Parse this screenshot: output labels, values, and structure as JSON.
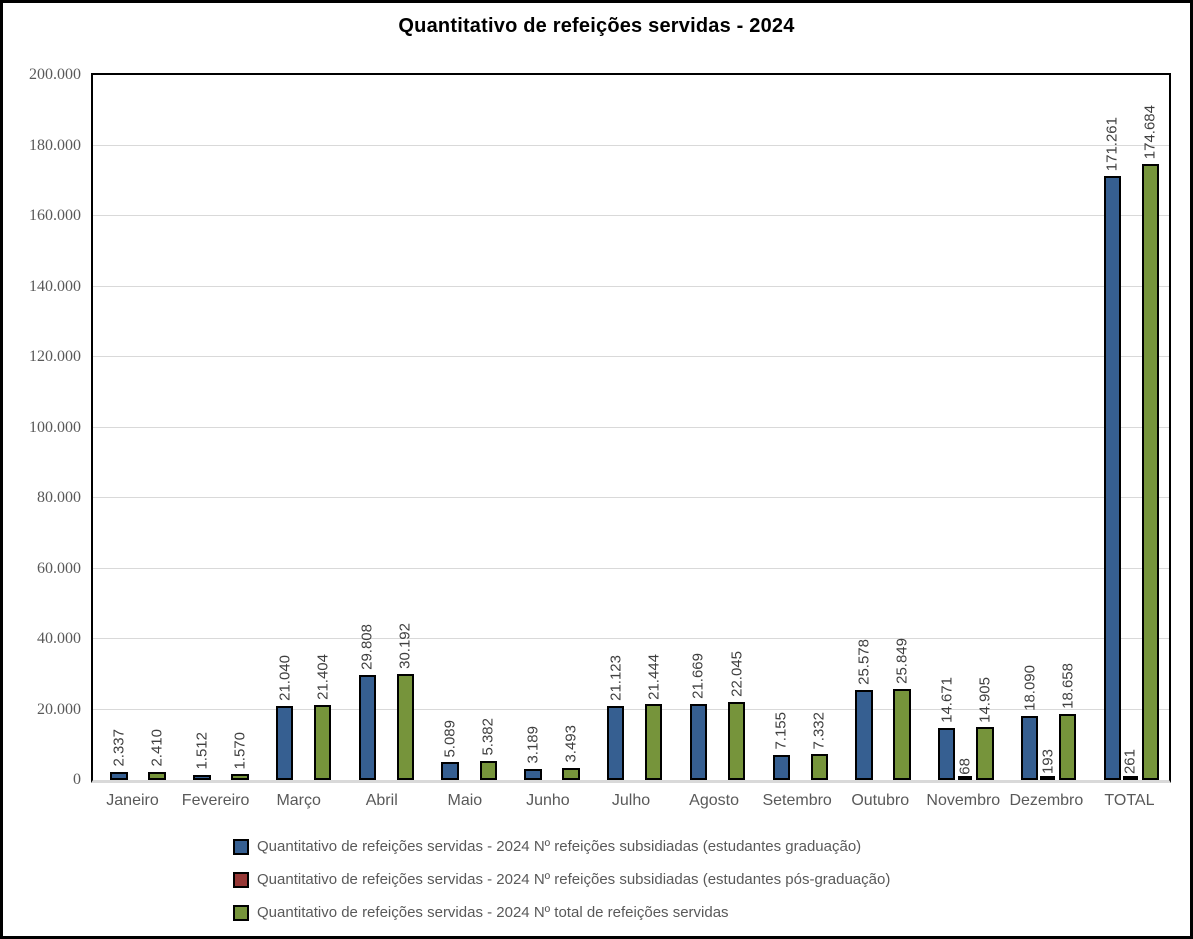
{
  "page": {
    "background": "#FFFFFF",
    "frame_border_color": "#000000"
  },
  "chart_data": {
    "type": "bar",
    "title": "Quantitativo de refeições servidas - 2024",
    "categories": [
      "Janeiro",
      "Fevereiro",
      "Março",
      "Abril",
      "Maio",
      "Junho",
      "Julho",
      "Agosto",
      "Setembro",
      "Outubro",
      "Novembro",
      "Dezembro",
      "TOTAL"
    ],
    "series": [
      {
        "key": "graduacao",
        "name": "Quantitativo de refeições servidas - 2024 Nº refeições subsidiadas (estudantes graduação)",
        "color": "#365F91",
        "values": [
          2337,
          1512,
          21040,
          29808,
          5089,
          3189,
          21123,
          21669,
          7155,
          25578,
          14671,
          18090,
          171261
        ],
        "labels": [
          "2.337",
          "1.512",
          "21.040",
          "29.808",
          "5.089",
          "3.189",
          "21.123",
          "21.669",
          "7.155",
          "25.578",
          "14.671",
          "18.090",
          "171.261"
        ]
      },
      {
        "key": "pos-graduacao",
        "name": "Quantitativo de refeições servidas - 2024 Nº refeições subsidiadas (estudantes pós-graduação)",
        "color": "#953735",
        "values": [
          0,
          0,
          0,
          0,
          0,
          0,
          0,
          0,
          0,
          0,
          68,
          193,
          261
        ],
        "labels": [
          null,
          null,
          null,
          null,
          null,
          null,
          null,
          null,
          null,
          null,
          "68",
          "193",
          "261"
        ]
      },
      {
        "key": "total",
        "name": "Quantitativo de refeições servidas - 2024 Nº total de refeições servidas",
        "color": "#76943B",
        "values": [
          2410,
          1570,
          21404,
          30192,
          5382,
          3493,
          21444,
          22045,
          7332,
          25849,
          14905,
          18658,
          174684
        ],
        "labels": [
          "2.410",
          "1.570",
          "21.404",
          "30.192",
          "5.382",
          "3.493",
          "21.444",
          "22.045",
          "7.332",
          "25.849",
          "14.905",
          "18.658",
          "174.684"
        ]
      }
    ],
    "ylim": [
      0,
      200000
    ],
    "ytick_step": 20000,
    "ytick_labels": [
      "0",
      "20.000",
      "40.000",
      "60.000",
      "80.000",
      "100.000",
      "120.000",
      "140.000",
      "160.000",
      "180.000",
      "200.000"
    ],
    "grid": true,
    "gridline_color": "#D9D9D9",
    "axis_label_color": "#595959",
    "data_label_color": "#3F3F3F",
    "bar_border_color": "#000000",
    "legend_position": "bottom"
  }
}
